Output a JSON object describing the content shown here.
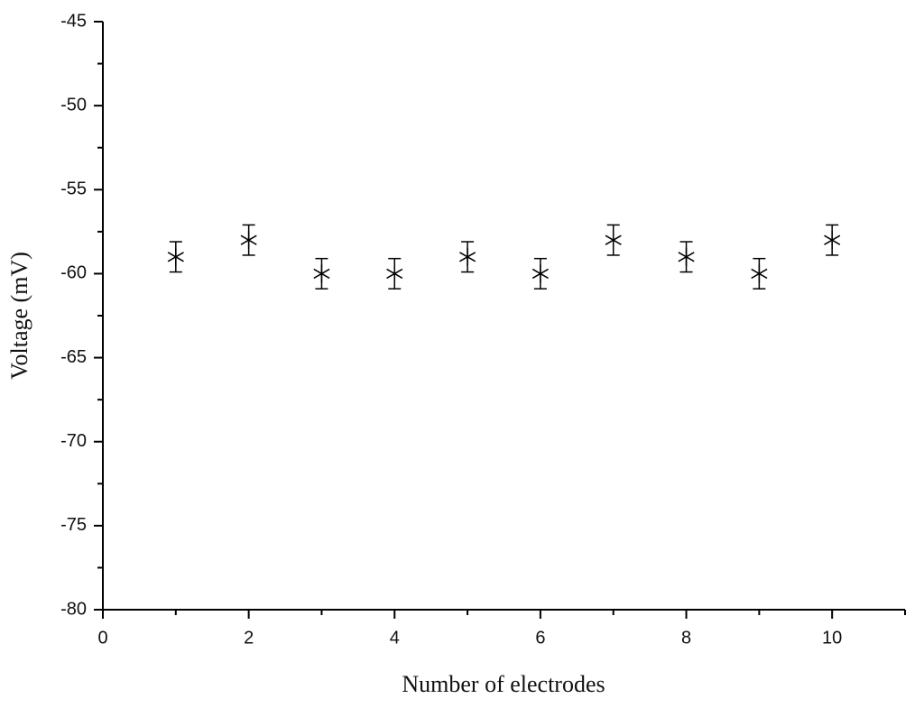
{
  "chart_data": {
    "type": "errorbar-scatter",
    "x_label": "Number of electrodes",
    "y_label": "Voltage (mV)",
    "x": [
      1,
      2,
      3,
      4,
      5,
      6,
      7,
      8,
      9,
      10
    ],
    "values": [
      -59,
      -58,
      -60,
      -60,
      -59,
      -60,
      -58,
      -59,
      -60,
      -58
    ],
    "errors": [
      0.9,
      0.9,
      0.9,
      0.9,
      0.9,
      0.9,
      0.9,
      0.9,
      0.9,
      0.9
    ],
    "color": "#000000",
    "xlim": [
      0,
      11
    ],
    "xticks": [
      0,
      2,
      4,
      6,
      8,
      10
    ],
    "x_minor_ticks": [
      1,
      3,
      5,
      7,
      9,
      11
    ],
    "ylim": [
      -80,
      -45
    ],
    "yticks": [
      -45,
      -50,
      -55,
      -60,
      -65,
      -70,
      -75,
      -80
    ],
    "y_minor_ticks": [
      -47.5,
      -52.5,
      -57.5,
      -62.5,
      -67.5,
      -72.5,
      -77.5
    ]
  }
}
